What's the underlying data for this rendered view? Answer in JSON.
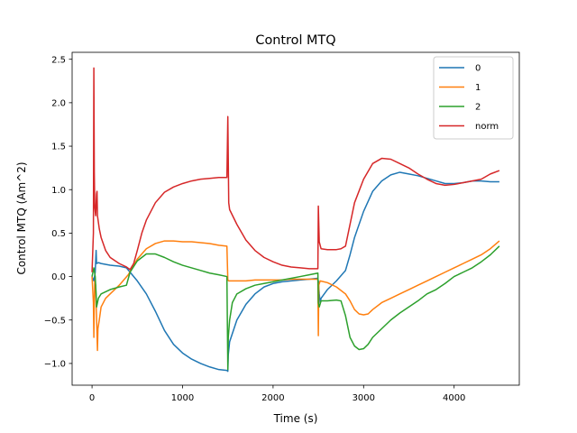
{
  "chart_data": {
    "type": "line",
    "title": "Control MTQ",
    "xlabel": "Time (s)",
    "ylabel": "Control MTQ (Am^2)",
    "xlim": [
      -220,
      4720
    ],
    "ylim": [
      -1.25,
      2.58
    ],
    "xticks": [
      0,
      1000,
      2000,
      3000,
      4000
    ],
    "xtick_labels": [
      "0",
      "1000",
      "2000",
      "3000",
      "4000"
    ],
    "yticks": [
      -1.0,
      -0.5,
      0.0,
      0.5,
      1.0,
      1.5,
      2.0,
      2.5
    ],
    "ytick_labels": [
      "−1.0",
      "−0.5",
      "0.0",
      "0.5",
      "1.0",
      "1.5",
      "2.0",
      "2.5"
    ],
    "grid": false,
    "legend_position": "top-right",
    "series": [
      {
        "name": "0",
        "color": "#1f77b4",
        "points": [
          [
            0,
            0.0
          ],
          [
            20,
            -0.05
          ],
          [
            35,
            0.05
          ],
          [
            45,
            0.3
          ],
          [
            50,
            0.15
          ],
          [
            70,
            0.16
          ],
          [
            100,
            0.15
          ],
          [
            200,
            0.13
          ],
          [
            300,
            0.12
          ],
          [
            380,
            0.1
          ],
          [
            420,
            0.05
          ],
          [
            500,
            -0.05
          ],
          [
            600,
            -0.2
          ],
          [
            700,
            -0.4
          ],
          [
            800,
            -0.62
          ],
          [
            900,
            -0.78
          ],
          [
            1000,
            -0.88
          ],
          [
            1100,
            -0.95
          ],
          [
            1200,
            -1.0
          ],
          [
            1300,
            -1.04
          ],
          [
            1400,
            -1.07
          ],
          [
            1490,
            -1.08
          ],
          [
            1500,
            -1.09
          ],
          [
            1505,
            -0.9
          ],
          [
            1520,
            -0.75
          ],
          [
            1600,
            -0.5
          ],
          [
            1700,
            -0.32
          ],
          [
            1800,
            -0.2
          ],
          [
            1900,
            -0.12
          ],
          [
            2000,
            -0.08
          ],
          [
            2100,
            -0.06
          ],
          [
            2200,
            -0.05
          ],
          [
            2300,
            -0.04
          ],
          [
            2400,
            -0.03
          ],
          [
            2490,
            -0.02
          ],
          [
            2500,
            -0.05
          ],
          [
            2510,
            -0.2
          ],
          [
            2520,
            -0.3
          ],
          [
            2530,
            -0.25
          ],
          [
            2600,
            -0.15
          ],
          [
            2700,
            -0.05
          ],
          [
            2800,
            0.07
          ],
          [
            2850,
            0.25
          ],
          [
            2900,
            0.45
          ],
          [
            3000,
            0.75
          ],
          [
            3100,
            0.98
          ],
          [
            3200,
            1.1
          ],
          [
            3300,
            1.17
          ],
          [
            3400,
            1.2
          ],
          [
            3500,
            1.18
          ],
          [
            3600,
            1.16
          ],
          [
            3700,
            1.13
          ],
          [
            3800,
            1.1
          ],
          [
            3900,
            1.07
          ],
          [
            4000,
            1.07
          ],
          [
            4100,
            1.08
          ],
          [
            4200,
            1.1
          ],
          [
            4300,
            1.1
          ],
          [
            4400,
            1.09
          ],
          [
            4500,
            1.09
          ]
        ]
      },
      {
        "name": "1",
        "color": "#ff7f0e",
        "points": [
          [
            0,
            0.0
          ],
          [
            15,
            -0.3
          ],
          [
            20,
            -0.7
          ],
          [
            25,
            -0.3
          ],
          [
            30,
            -0.05
          ],
          [
            40,
            -0.1
          ],
          [
            60,
            -0.85
          ],
          [
            65,
            -0.6
          ],
          [
            80,
            -0.5
          ],
          [
            100,
            -0.35
          ],
          [
            150,
            -0.25
          ],
          [
            200,
            -0.2
          ],
          [
            300,
            -0.1
          ],
          [
            400,
            0.02
          ],
          [
            500,
            0.2
          ],
          [
            600,
            0.32
          ],
          [
            700,
            0.38
          ],
          [
            800,
            0.41
          ],
          [
            900,
            0.41
          ],
          [
            1000,
            0.4
          ],
          [
            1100,
            0.4
          ],
          [
            1200,
            0.39
          ],
          [
            1300,
            0.38
          ],
          [
            1400,
            0.36
          ],
          [
            1490,
            0.35
          ],
          [
            1500,
            -0.04
          ],
          [
            1510,
            -0.05
          ],
          [
            1600,
            -0.05
          ],
          [
            1700,
            -0.05
          ],
          [
            1800,
            -0.04
          ],
          [
            1900,
            -0.04
          ],
          [
            2000,
            -0.04
          ],
          [
            2100,
            -0.04
          ],
          [
            2200,
            -0.03
          ],
          [
            2300,
            -0.03
          ],
          [
            2400,
            -0.03
          ],
          [
            2495,
            -0.03
          ],
          [
            2500,
            -0.68
          ],
          [
            2505,
            -0.1
          ],
          [
            2520,
            -0.05
          ],
          [
            2600,
            -0.07
          ],
          [
            2700,
            -0.12
          ],
          [
            2800,
            -0.2
          ],
          [
            2850,
            -0.28
          ],
          [
            2900,
            -0.38
          ],
          [
            2950,
            -0.43
          ],
          [
            3000,
            -0.44
          ],
          [
            3050,
            -0.43
          ],
          [
            3100,
            -0.38
          ],
          [
            3200,
            -0.3
          ],
          [
            3300,
            -0.25
          ],
          [
            3400,
            -0.2
          ],
          [
            3500,
            -0.15
          ],
          [
            3600,
            -0.1
          ],
          [
            3700,
            -0.05
          ],
          [
            3800,
            0.0
          ],
          [
            3900,
            0.05
          ],
          [
            4000,
            0.1
          ],
          [
            4100,
            0.15
          ],
          [
            4200,
            0.2
          ],
          [
            4300,
            0.25
          ],
          [
            4400,
            0.32
          ],
          [
            4500,
            0.41
          ]
        ]
      },
      {
        "name": "2",
        "color": "#2ca02c",
        "points": [
          [
            0,
            0.0
          ],
          [
            20,
            0.1
          ],
          [
            35,
            0.0
          ],
          [
            45,
            -0.2
          ],
          [
            50,
            -0.35
          ],
          [
            70,
            -0.25
          ],
          [
            100,
            -0.2
          ],
          [
            200,
            -0.15
          ],
          [
            300,
            -0.12
          ],
          [
            380,
            -0.1
          ],
          [
            420,
            0.05
          ],
          [
            500,
            0.18
          ],
          [
            600,
            0.26
          ],
          [
            700,
            0.26
          ],
          [
            800,
            0.22
          ],
          [
            900,
            0.17
          ],
          [
            1000,
            0.13
          ],
          [
            1100,
            0.1
          ],
          [
            1200,
            0.07
          ],
          [
            1300,
            0.04
          ],
          [
            1400,
            0.02
          ],
          [
            1490,
            0.0
          ],
          [
            1500,
            -1.07
          ],
          [
            1505,
            -0.7
          ],
          [
            1520,
            -0.5
          ],
          [
            1550,
            -0.3
          ],
          [
            1600,
            -0.2
          ],
          [
            1700,
            -0.14
          ],
          [
            1800,
            -0.1
          ],
          [
            1900,
            -0.08
          ],
          [
            2000,
            -0.06
          ],
          [
            2100,
            -0.04
          ],
          [
            2200,
            -0.02
          ],
          [
            2300,
            0.0
          ],
          [
            2400,
            0.02
          ],
          [
            2495,
            0.04
          ],
          [
            2500,
            -0.3
          ],
          [
            2510,
            -0.35
          ],
          [
            2530,
            -0.28
          ],
          [
            2600,
            -0.28
          ],
          [
            2700,
            -0.27
          ],
          [
            2750,
            -0.28
          ],
          [
            2800,
            -0.45
          ],
          [
            2850,
            -0.7
          ],
          [
            2900,
            -0.8
          ],
          [
            2950,
            -0.84
          ],
          [
            3000,
            -0.83
          ],
          [
            3050,
            -0.78
          ],
          [
            3100,
            -0.7
          ],
          [
            3200,
            -0.6
          ],
          [
            3300,
            -0.5
          ],
          [
            3400,
            -0.42
          ],
          [
            3500,
            -0.35
          ],
          [
            3600,
            -0.28
          ],
          [
            3700,
            -0.2
          ],
          [
            3800,
            -0.15
          ],
          [
            3900,
            -0.08
          ],
          [
            4000,
            0.0
          ],
          [
            4100,
            0.05
          ],
          [
            4200,
            0.1
          ],
          [
            4300,
            0.17
          ],
          [
            4400,
            0.25
          ],
          [
            4500,
            0.35
          ]
        ]
      },
      {
        "name": "norm",
        "color": "#d62728",
        "points": [
          [
            0,
            0.05
          ],
          [
            15,
            0.5
          ],
          [
            20,
            2.4
          ],
          [
            25,
            1.2
          ],
          [
            30,
            0.8
          ],
          [
            40,
            0.7
          ],
          [
            50,
            0.95
          ],
          [
            55,
            0.98
          ],
          [
            60,
            0.7
          ],
          [
            80,
            0.55
          ],
          [
            100,
            0.45
          ],
          [
            150,
            0.3
          ],
          [
            200,
            0.22
          ],
          [
            300,
            0.15
          ],
          [
            380,
            0.11
          ],
          [
            420,
            0.08
          ],
          [
            460,
            0.15
          ],
          [
            500,
            0.3
          ],
          [
            550,
            0.5
          ],
          [
            600,
            0.65
          ],
          [
            700,
            0.85
          ],
          [
            800,
            0.97
          ],
          [
            900,
            1.03
          ],
          [
            1000,
            1.07
          ],
          [
            1100,
            1.1
          ],
          [
            1200,
            1.12
          ],
          [
            1300,
            1.13
          ],
          [
            1400,
            1.14
          ],
          [
            1490,
            1.14
          ],
          [
            1500,
            1.84
          ],
          [
            1510,
            0.85
          ],
          [
            1520,
            0.77
          ],
          [
            1600,
            0.6
          ],
          [
            1700,
            0.42
          ],
          [
            1800,
            0.3
          ],
          [
            1900,
            0.22
          ],
          [
            2000,
            0.17
          ],
          [
            2100,
            0.13
          ],
          [
            2200,
            0.11
          ],
          [
            2300,
            0.1
          ],
          [
            2400,
            0.09
          ],
          [
            2495,
            0.09
          ],
          [
            2500,
            0.81
          ],
          [
            2510,
            0.4
          ],
          [
            2530,
            0.32
          ],
          [
            2600,
            0.31
          ],
          [
            2700,
            0.31
          ],
          [
            2750,
            0.32
          ],
          [
            2800,
            0.35
          ],
          [
            2850,
            0.6
          ],
          [
            2900,
            0.85
          ],
          [
            3000,
            1.12
          ],
          [
            3100,
            1.3
          ],
          [
            3200,
            1.36
          ],
          [
            3300,
            1.35
          ],
          [
            3400,
            1.3
          ],
          [
            3500,
            1.25
          ],
          [
            3600,
            1.18
          ],
          [
            3700,
            1.12
          ],
          [
            3800,
            1.07
          ],
          [
            3900,
            1.05
          ],
          [
            4000,
            1.06
          ],
          [
            4100,
            1.08
          ],
          [
            4200,
            1.1
          ],
          [
            4300,
            1.12
          ],
          [
            4400,
            1.18
          ],
          [
            4500,
            1.22
          ]
        ]
      }
    ]
  }
}
